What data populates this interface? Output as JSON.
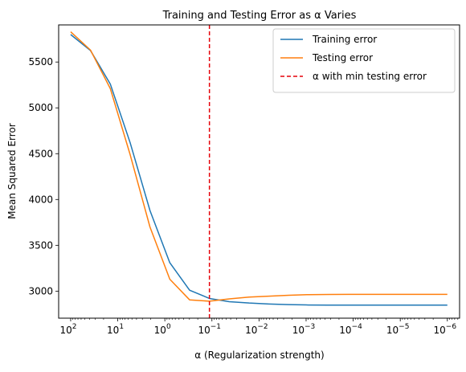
{
  "chart_data": {
    "type": "line",
    "title": "Training and Testing Error as α Varies",
    "xlabel": "α (Regularization strength)",
    "ylabel": "Mean Squared Error",
    "x_scale": "log",
    "x_inverted": true,
    "xlim": [
      180,
      5.5e-07
    ],
    "ylim": [
      2705,
      5905
    ],
    "grid": false,
    "legend_position": "top-right",
    "x_ticks": [
      {
        "base": "10",
        "exp": "2",
        "value": 100
      },
      {
        "base": "10",
        "exp": "1",
        "value": 10
      },
      {
        "base": "10",
        "exp": "0",
        "value": 1
      },
      {
        "base": "10",
        "exp": "−1",
        "value": 0.1
      },
      {
        "base": "10",
        "exp": "−2",
        "value": 0.01
      },
      {
        "base": "10",
        "exp": "−3",
        "value": 0.001
      },
      {
        "base": "10",
        "exp": "−4",
        "value": 0.0001
      },
      {
        "base": "10",
        "exp": "−5",
        "value": 1e-05
      },
      {
        "base": "10",
        "exp": "−6",
        "value": 1e-06
      }
    ],
    "y_ticks": [
      {
        "label": "3000",
        "value": 3000
      },
      {
        "label": "3500",
        "value": 3500
      },
      {
        "label": "4000",
        "value": 4000
      },
      {
        "label": "4500",
        "value": 4500
      },
      {
        "label": "5000",
        "value": 5000
      },
      {
        "label": "5500",
        "value": 5500
      }
    ],
    "x": [
      100,
      37.9,
      14.4,
      5.46,
      2.07,
      0.785,
      0.298,
      0.113,
      0.0428,
      0.0162,
      0.00616,
      0.00234,
      0.000886,
      0.000336,
      0.000127,
      4.83e-05,
      1.83e-05,
      6.95e-06,
      2.64e-06,
      1e-06
    ],
    "series": [
      {
        "name": "Training error",
        "color": "#1f77b4",
        "style": "solid",
        "values": [
          5800,
          5625,
          5260,
          4620,
          3880,
          3310,
          3010,
          2920,
          2885,
          2870,
          2860,
          2853,
          2849,
          2848,
          2847,
          2847,
          2847,
          2847,
          2847,
          2847
        ]
      },
      {
        "name": "Testing error",
        "color": "#ff7f0e",
        "style": "solid",
        "values": [
          5830,
          5630,
          5210,
          4490,
          3700,
          3130,
          2905,
          2890,
          2915,
          2935,
          2945,
          2955,
          2962,
          2964,
          2965,
          2965,
          2965,
          2965,
          2965,
          2965
        ]
      }
    ],
    "annotations": [
      {
        "type": "vline",
        "x": 0.113,
        "color": "#e6000a",
        "style": "dashed",
        "label": "α with min testing error"
      }
    ]
  }
}
